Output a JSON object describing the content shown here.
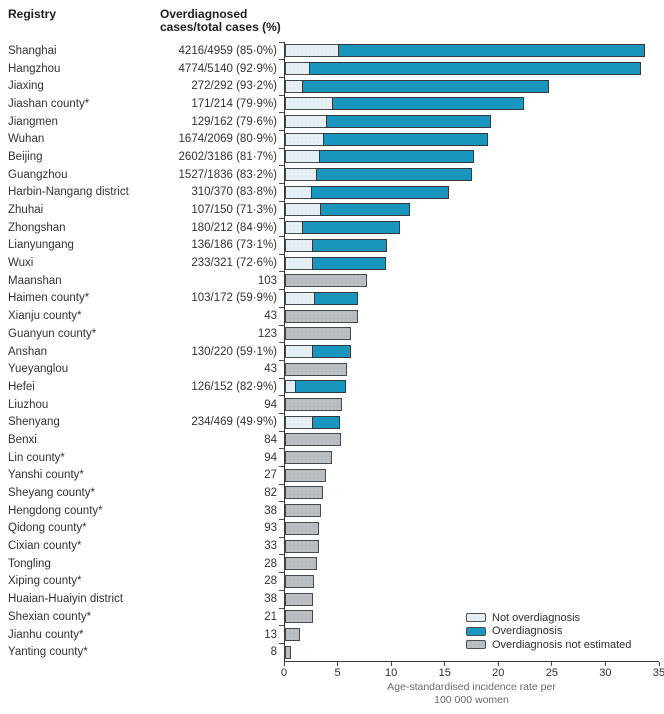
{
  "header": {
    "registry_label": "Registry",
    "overdiagnosed_line1": "Overdiagnosed",
    "overdiagnosed_line2": "cases/total cases (%)"
  },
  "colors": {
    "not_overdiagnosis": "#e3eef4",
    "overdiagnosis": "#1996bd",
    "overdiagnosis_not_estimated": "#b6bbbf",
    "bar_border": "#45494d",
    "axis": "#3a3a3a"
  },
  "legend": {
    "items": [
      {
        "key": "not_overdiagnosis",
        "label": "Not overdiagnosis",
        "color": "#e3eef4"
      },
      {
        "key": "overdiagnosis",
        "label": "Overdiagnosis",
        "color": "#1996bd"
      },
      {
        "key": "overdiagnosis_not_estimated",
        "label": "Overdiagnosis not estimated",
        "color": "#b6bbbf"
      }
    ]
  },
  "chart_data": {
    "type": "bar",
    "orientation": "horizontal",
    "stacked": true,
    "xlim": [
      0,
      35
    ],
    "xticks": [
      0,
      5,
      10,
      15,
      20,
      25,
      30,
      35
    ],
    "xlabel_line1": "Age-standardised incidence rate per",
    "xlabel_line2": "100 000 women",
    "grid": false,
    "legend_position": "bottom-right",
    "series_note": "rate = total bar length (age-standardised incidence per 100 000 women, estimated from axis); overdiag_pct splits bar into 'not overdiagnosis' (pale) then 'overdiagnosis' (teal); rows with overdiag_pct null are single gray bars (overdiagnosis not estimated)",
    "rows": [
      {
        "registry": "Shanghai",
        "display_value": "4216/4959 (85·0%)",
        "rate": 33.8,
        "overdiag_pct": 85.0
      },
      {
        "registry": "Hangzhou",
        "display_value": "4774/5140 (92·9%)",
        "rate": 33.4,
        "overdiag_pct": 92.9
      },
      {
        "registry": "Jiaxing",
        "display_value": "272/292 (93·2%)",
        "rate": 24.8,
        "overdiag_pct": 93.2
      },
      {
        "registry": "Jiashan county*",
        "display_value": "171/214 (79·9%)",
        "rate": 22.5,
        "overdiag_pct": 79.9
      },
      {
        "registry": "Jiangmen",
        "display_value": "129/162 (79·6%)",
        "rate": 19.4,
        "overdiag_pct": 79.6
      },
      {
        "registry": "Wuhan",
        "display_value": "1674/2069 (80·9%)",
        "rate": 19.1,
        "overdiag_pct": 80.9
      },
      {
        "registry": "Beijing",
        "display_value": "2602/3186 (81·7%)",
        "rate": 17.8,
        "overdiag_pct": 81.7
      },
      {
        "registry": "Guangzhou",
        "display_value": "1527/1836 (83·2%)",
        "rate": 17.6,
        "overdiag_pct": 83.2
      },
      {
        "registry": "Harbin-Nangang district",
        "display_value": "310/370 (83·8%)",
        "rate": 15.4,
        "overdiag_pct": 83.8
      },
      {
        "registry": "Zhuhai",
        "display_value": "107/150 (71·3%)",
        "rate": 11.8,
        "overdiag_pct": 71.3
      },
      {
        "registry": "Zhongshan",
        "display_value": "180/212 (84·9%)",
        "rate": 10.9,
        "overdiag_pct": 84.9
      },
      {
        "registry": "Lianyungang",
        "display_value": "136/186 (73·1%)",
        "rate": 9.6,
        "overdiag_pct": 73.1
      },
      {
        "registry": "Wuxi",
        "display_value": "233/321 (72·6%)",
        "rate": 9.5,
        "overdiag_pct": 72.6
      },
      {
        "registry": "Maanshan",
        "display_value": "103",
        "rate": 7.7,
        "overdiag_pct": null
      },
      {
        "registry": "Haimen county*",
        "display_value": "103/172 (59·9%)",
        "rate": 6.9,
        "overdiag_pct": 59.9
      },
      {
        "registry": "Xianju county*",
        "display_value": "43",
        "rate": 6.8,
        "overdiag_pct": null
      },
      {
        "registry": "Guanyun county*",
        "display_value": "123",
        "rate": 6.2,
        "overdiag_pct": null
      },
      {
        "registry": "Anshan",
        "display_value": "130/220 (59·1%)",
        "rate": 6.3,
        "overdiag_pct": 59.1
      },
      {
        "registry": "Yueyanglou",
        "display_value": "43",
        "rate": 5.8,
        "overdiag_pct": null
      },
      {
        "registry": "Hefei",
        "display_value": "126/152 (82·9%)",
        "rate": 5.8,
        "overdiag_pct": 82.9
      },
      {
        "registry": "Liuzhou",
        "display_value": "94",
        "rate": 5.3,
        "overdiag_pct": null
      },
      {
        "registry": "Shenyang",
        "display_value": "234/469 (49·9%)",
        "rate": 5.2,
        "overdiag_pct": 49.9
      },
      {
        "registry": "Benxi",
        "display_value": "84",
        "rate": 5.2,
        "overdiag_pct": null
      },
      {
        "registry": "Lin county*",
        "display_value": "94",
        "rate": 4.4,
        "overdiag_pct": null
      },
      {
        "registry": "Yanshi county*",
        "display_value": "27",
        "rate": 3.8,
        "overdiag_pct": null
      },
      {
        "registry": "Sheyang county*",
        "display_value": "82",
        "rate": 3.6,
        "overdiag_pct": null
      },
      {
        "registry": "Hengdong county*",
        "display_value": "38",
        "rate": 3.4,
        "overdiag_pct": null
      },
      {
        "registry": "Qidong county*",
        "display_value": "93",
        "rate": 3.2,
        "overdiag_pct": null
      },
      {
        "registry": "Cixian county*",
        "display_value": "33",
        "rate": 3.2,
        "overdiag_pct": null
      },
      {
        "registry": "Tongling",
        "display_value": "28",
        "rate": 3.0,
        "overdiag_pct": null
      },
      {
        "registry": "Xiping county*",
        "display_value": "28",
        "rate": 2.7,
        "overdiag_pct": null
      },
      {
        "registry": "Huaian-Huaiyin district",
        "display_value": "38",
        "rate": 2.6,
        "overdiag_pct": null
      },
      {
        "registry": "Shexian county*",
        "display_value": "21",
        "rate": 2.6,
        "overdiag_pct": null
      },
      {
        "registry": "Jianhu county*",
        "display_value": "13",
        "rate": 1.4,
        "overdiag_pct": null
      },
      {
        "registry": "Yanting county*",
        "display_value": "8",
        "rate": 0.6,
        "overdiag_pct": null
      }
    ]
  }
}
